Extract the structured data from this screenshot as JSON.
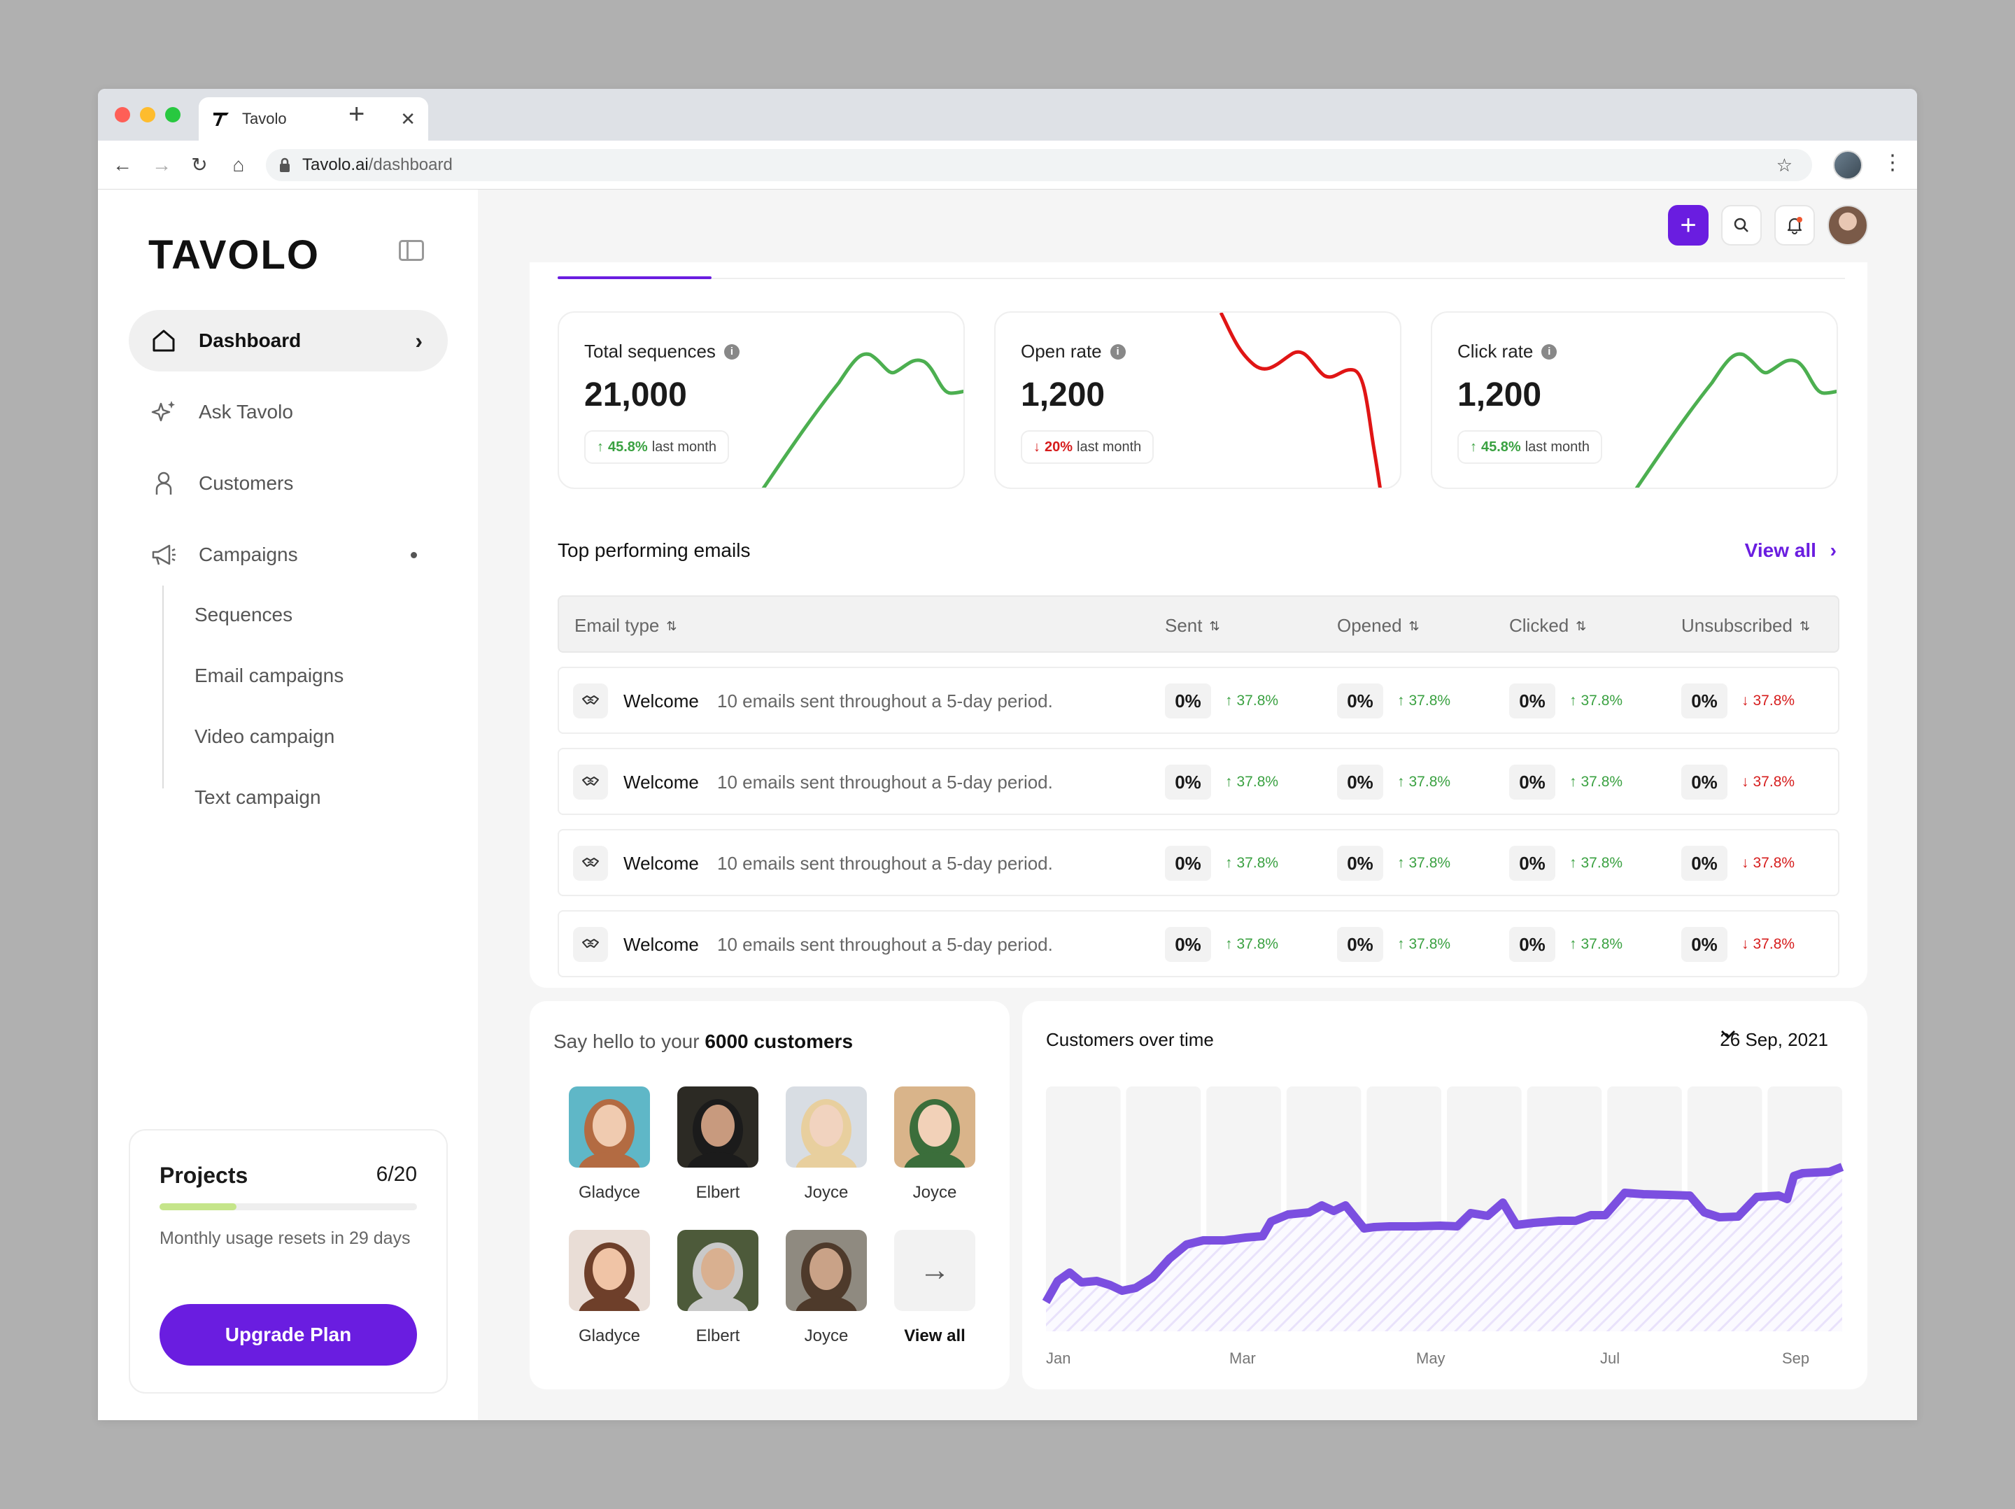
{
  "browser": {
    "tab_title": "Tavolo",
    "url_host": "Tavolo.ai",
    "url_path": "/dashboard"
  },
  "sidebar": {
    "logo": "TAVOLO",
    "items": [
      {
        "label": "Dashboard",
        "icon": "home-icon",
        "active": true
      },
      {
        "label": "Ask Tavolo",
        "icon": "sparkle-icon"
      },
      {
        "label": "Customers",
        "icon": "user-icon"
      },
      {
        "label": "Campaigns",
        "icon": "megaphone-icon"
      }
    ],
    "sub_items": [
      "Sequences",
      "Email campaigns",
      "Video campaign",
      "Text campaign"
    ],
    "projects": {
      "title": "Projects",
      "count": "6/20",
      "progress": 0.3,
      "description": "Monthly usage resets in 29 days",
      "button": "Upgrade Plan"
    }
  },
  "stats": [
    {
      "label": "Total sequences",
      "value": "21,000",
      "delta": "45.8%",
      "delta_suffix": "last month",
      "direction": "up"
    },
    {
      "label": "Open rate",
      "value": "1,200",
      "delta": "20%",
      "delta_suffix": "last month",
      "direction": "down"
    },
    {
      "label": "Click rate",
      "value": "1,200",
      "delta": "45.8%",
      "delta_suffix": "last month",
      "direction": "up"
    }
  ],
  "emails": {
    "title": "Top performing emails",
    "view_all": "View all",
    "columns": [
      "Email type",
      "Sent",
      "Opened",
      "Clicked",
      "Unsubscribed"
    ],
    "rows": [
      {
        "name": "Welcome",
        "desc": "10 emails sent throughout a 5-day period.",
        "sent": "0%",
        "sent_delta": "37.8%",
        "opened": "0%",
        "opened_delta": "37.8%",
        "clicked": "0%",
        "clicked_delta": "37.8%",
        "unsub": "0%",
        "unsub_delta": "37.8%"
      },
      {
        "name": "Welcome",
        "desc": "10 emails sent throughout a 5-day period.",
        "sent": "0%",
        "sent_delta": "37.8%",
        "opened": "0%",
        "opened_delta": "37.8%",
        "clicked": "0%",
        "clicked_delta": "37.8%",
        "unsub": "0%",
        "unsub_delta": "37.8%"
      },
      {
        "name": "Welcome",
        "desc": "10 emails sent throughout a 5-day period.",
        "sent": "0%",
        "sent_delta": "37.8%",
        "opened": "0%",
        "opened_delta": "37.8%",
        "clicked": "0%",
        "clicked_delta": "37.8%",
        "unsub": "0%",
        "unsub_delta": "37.8%"
      },
      {
        "name": "Welcome",
        "desc": "10 emails sent throughout a 5-day period.",
        "sent": "0%",
        "sent_delta": "37.8%",
        "opened": "0%",
        "opened_delta": "37.8%",
        "clicked": "0%",
        "clicked_delta": "37.8%",
        "unsub": "0%",
        "unsub_delta": "37.8%"
      }
    ]
  },
  "customers": {
    "title_prefix": "Say hello to your ",
    "title_bold": "6000 customers",
    "people": [
      "Gladyce",
      "Elbert",
      "Joyce",
      "Joyce",
      "Gladyce",
      "Elbert",
      "Joyce"
    ],
    "view_all": "View all"
  },
  "customers_chart": {
    "title": "Customers over time",
    "date": "26 Sep, 2021",
    "x_labels": [
      "Jan",
      "Mar",
      "May",
      "Jul",
      "Sep"
    ]
  },
  "colors": {
    "accent": "#6a1de0",
    "up": "#3aa141",
    "down": "#d61c1c",
    "chart_line": "#7b4fe0"
  }
}
